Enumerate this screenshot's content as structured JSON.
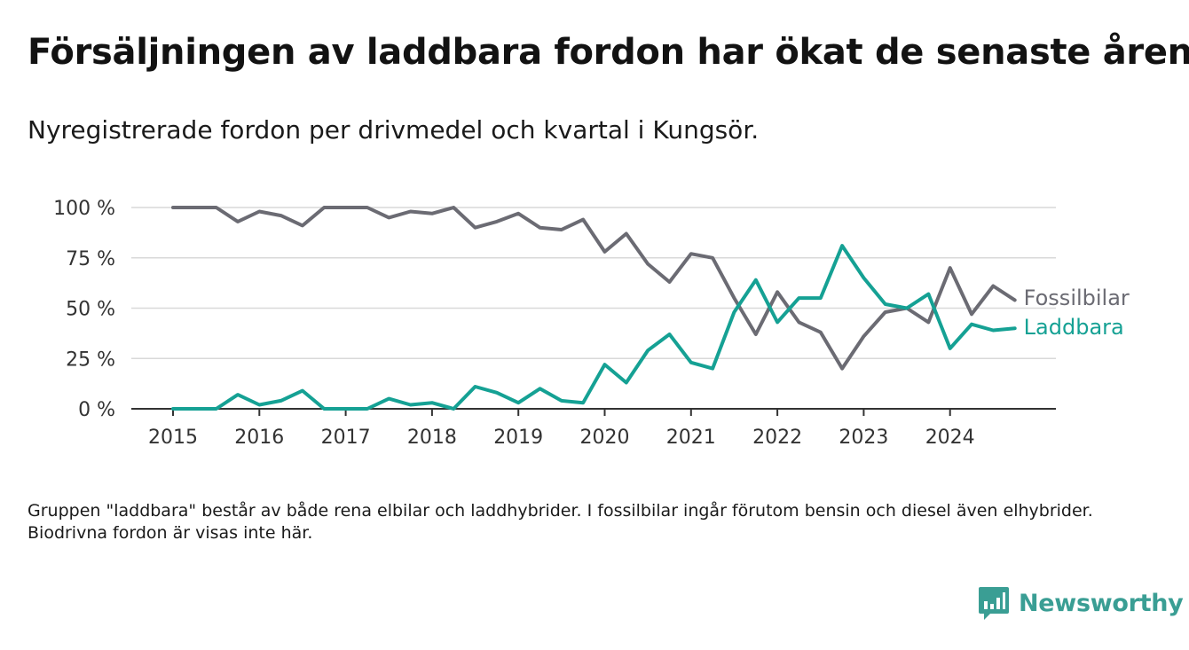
{
  "title": "Försäljningen av laddbara fordon har ökat de senaste åren",
  "subtitle": "Nyregistrerade fordon per drivmedel och kvartal i Kungsör.",
  "note": "Gruppen \"laddbara\" består av både rena elbilar och laddhybrider. I fossilbilar ingår förutom bensin och diesel även elhybrider. Biodrivna fordon är visas inte här.",
  "brand": {
    "name": "Newsworthy",
    "icon": "newsworthy-logo-icon",
    "color": "#3a9e94"
  },
  "chart_data": {
    "type": "line",
    "x_ticks": [
      "2015",
      "2016",
      "2017",
      "2018",
      "2019",
      "2020",
      "2021",
      "2022",
      "2023",
      "2024"
    ],
    "y_ticks": [
      "0 %",
      "25 %",
      "50 %",
      "75 %",
      "100 %"
    ],
    "ylim": [
      0,
      100
    ],
    "x": [
      "2015 Q1",
      "2015 Q2",
      "2015 Q3",
      "2015 Q4",
      "2016 Q1",
      "2016 Q2",
      "2016 Q3",
      "2016 Q4",
      "2017 Q1",
      "2017 Q2",
      "2017 Q3",
      "2017 Q4",
      "2018 Q1",
      "2018 Q2",
      "2018 Q3",
      "2018 Q4",
      "2019 Q1",
      "2019 Q2",
      "2019 Q3",
      "2019 Q4",
      "2020 Q1",
      "2020 Q2",
      "2020 Q3",
      "2020 Q4",
      "2021 Q1",
      "2021 Q2",
      "2021 Q3",
      "2021 Q4",
      "2022 Q1",
      "2022 Q2",
      "2022 Q3",
      "2022 Q4",
      "2023 Q1",
      "2023 Q2",
      "2023 Q3",
      "2023 Q4",
      "2024 Q1",
      "2024 Q2",
      "2024 Q3",
      "2024 Q4"
    ],
    "grid": true,
    "legend": "direct labels at line ends",
    "series": [
      {
        "name": "Fossilbilar",
        "color": "#6b6b73",
        "values": [
          100,
          100,
          100,
          93,
          98,
          96,
          91,
          100,
          100,
          100,
          95,
          98,
          97,
          100,
          90,
          93,
          97,
          90,
          89,
          94,
          78,
          87,
          72,
          63,
          77,
          75,
          55,
          37,
          58,
          43,
          38,
          20,
          36,
          48,
          50,
          43,
          70,
          47,
          61,
          54
        ]
      },
      {
        "name": "Laddbara",
        "color": "#15a194",
        "values": [
          0,
          0,
          0,
          7,
          2,
          4,
          9,
          0,
          0,
          0,
          5,
          2,
          3,
          0,
          11,
          8,
          3,
          10,
          4,
          3,
          22,
          13,
          29,
          37,
          23,
          20,
          48,
          64,
          43,
          55,
          55,
          81,
          65,
          52,
          50,
          57,
          30,
          42,
          39,
          40
        ]
      }
    ]
  }
}
